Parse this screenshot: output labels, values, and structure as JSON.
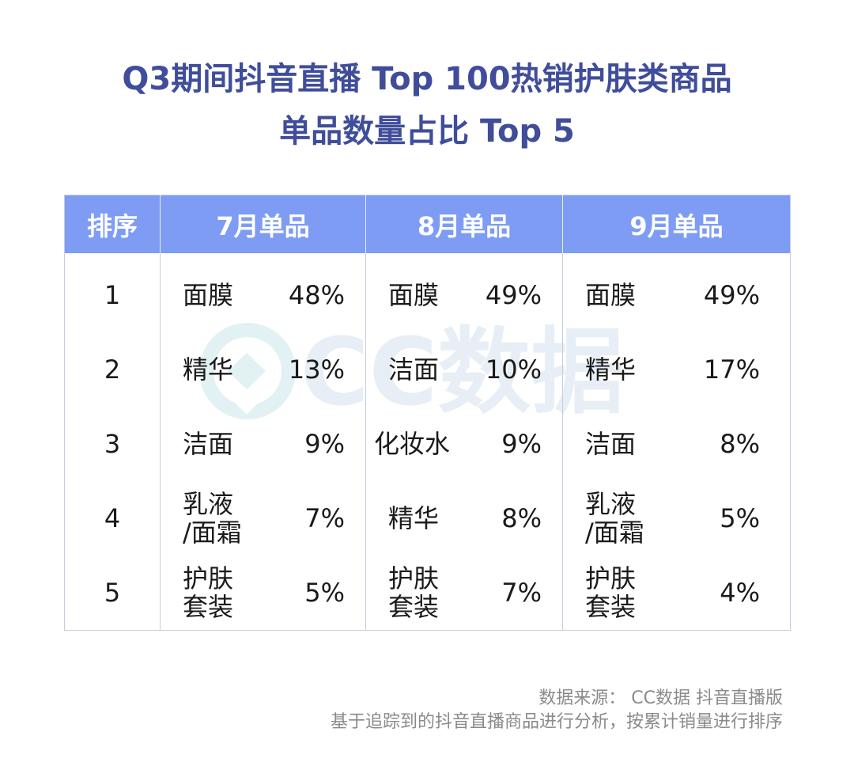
{
  "title": {
    "line1": "Q3期间抖音直播 Top 100热销护肤类商品",
    "line2": "单品数量占比 Top 5"
  },
  "watermark": {
    "text": "CC数据"
  },
  "table": {
    "headers": [
      "排序",
      "7月单品",
      "8月单品",
      "9月单品"
    ],
    "rows": [
      {
        "rank": "1",
        "july": {
          "product": "面膜",
          "share": "48%"
        },
        "august": {
          "product": "面膜",
          "share": "49%"
        },
        "september": {
          "product": "面膜",
          "share": "49%"
        }
      },
      {
        "rank": "2",
        "july": {
          "product": "精华",
          "share": "13%"
        },
        "august": {
          "product": "洁面",
          "share": "10%"
        },
        "september": {
          "product": "精华",
          "share": "17%"
        }
      },
      {
        "rank": "3",
        "july": {
          "product": "洁面",
          "share": "9%"
        },
        "august": {
          "product": "化妆水",
          "share": "9%"
        },
        "september": {
          "product": "洁面",
          "share": "8%"
        }
      },
      {
        "rank": "4",
        "july": {
          "product_line1": "乳液",
          "product_line2": "/面霜",
          "share": "7%"
        },
        "august": {
          "product": "精华",
          "share": "8%"
        },
        "september": {
          "product_line1": "乳液",
          "product_line2": "/面霜",
          "share": "5%"
        }
      },
      {
        "rank": "5",
        "july": {
          "product_line1": "护肤",
          "product_line2": "套装",
          "share": "5%"
        },
        "august": {
          "product_line1": "护肤",
          "product_line2": "套装",
          "share": "7%"
        },
        "september": {
          "product_line1": "护肤",
          "product_line2": "套装",
          "share": "4%"
        }
      }
    ]
  },
  "source": {
    "line1": "数据来源： CC数据 抖音直播版",
    "line2": "基于追踪到的抖音直播商品进行分析，按累计销量进行排序"
  },
  "colors": {
    "title": "#3f4d9a",
    "header_bg": "#7e9cf3",
    "header_text": "#ffffff",
    "border": "#c5ccdf",
    "watermark": "#e7eef5",
    "source_text": "#8a8a8a"
  }
}
